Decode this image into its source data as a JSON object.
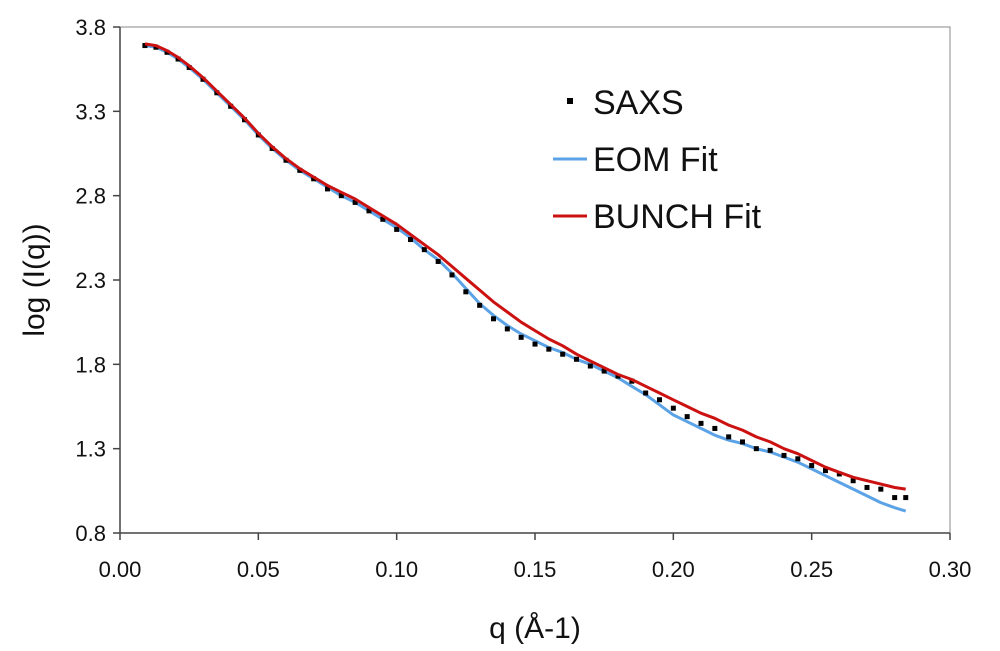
{
  "chart_data": {
    "type": "scatter",
    "title": "",
    "xlabel": "q (Å-1)",
    "ylabel": "log (I(q))",
    "xlim": [
      0.0,
      0.3
    ],
    "ylim": [
      0.8,
      3.8
    ],
    "x_ticks": [
      "0.00",
      "0.05",
      "0.10",
      "0.15",
      "0.20",
      "0.25",
      "0.30"
    ],
    "y_ticks": [
      "3.8",
      "3.3",
      "2.8",
      "2.3",
      "1.8",
      "1.3",
      "0.8"
    ],
    "grid": false,
    "legend_position": "top-right",
    "colors": {
      "SAXS": "#000000",
      "EOM Fit": "#5ba3e6",
      "BUNCH Fit": "#cc1111"
    },
    "series": [
      {
        "name": "SAXS",
        "kind": "points",
        "x": [
          0.009,
          0.013,
          0.017,
          0.021,
          0.025,
          0.03,
          0.035,
          0.04,
          0.045,
          0.05,
          0.055,
          0.06,
          0.065,
          0.07,
          0.075,
          0.08,
          0.085,
          0.09,
          0.095,
          0.1,
          0.105,
          0.11,
          0.115,
          0.12,
          0.125,
          0.13,
          0.135,
          0.14,
          0.145,
          0.15,
          0.155,
          0.16,
          0.165,
          0.17,
          0.175,
          0.18,
          0.185,
          0.19,
          0.195,
          0.2,
          0.205,
          0.21,
          0.215,
          0.22,
          0.225,
          0.23,
          0.235,
          0.24,
          0.245,
          0.25,
          0.255,
          0.26,
          0.265,
          0.27,
          0.275,
          0.28,
          0.284
        ],
        "y": [
          3.69,
          3.68,
          3.65,
          3.61,
          3.56,
          3.49,
          3.41,
          3.33,
          3.25,
          3.16,
          3.08,
          3.01,
          2.95,
          2.9,
          2.84,
          2.8,
          2.76,
          2.71,
          2.66,
          2.6,
          2.54,
          2.48,
          2.41,
          2.33,
          2.23,
          2.15,
          2.07,
          2.01,
          1.96,
          1.92,
          1.89,
          1.86,
          1.83,
          1.79,
          1.76,
          1.73,
          1.7,
          1.63,
          1.59,
          1.54,
          1.49,
          1.45,
          1.42,
          1.37,
          1.34,
          1.3,
          1.29,
          1.26,
          1.24,
          1.2,
          1.17,
          1.15,
          1.11,
          1.07,
          1.06,
          1.01,
          1.01
        ]
      },
      {
        "name": "EOM Fit",
        "kind": "line",
        "x": [
          0.009,
          0.013,
          0.017,
          0.021,
          0.025,
          0.03,
          0.035,
          0.04,
          0.045,
          0.05,
          0.055,
          0.06,
          0.065,
          0.07,
          0.075,
          0.08,
          0.085,
          0.09,
          0.095,
          0.1,
          0.105,
          0.11,
          0.115,
          0.12,
          0.125,
          0.13,
          0.135,
          0.14,
          0.145,
          0.15,
          0.155,
          0.16,
          0.165,
          0.17,
          0.175,
          0.18,
          0.185,
          0.19,
          0.195,
          0.2,
          0.205,
          0.21,
          0.215,
          0.22,
          0.225,
          0.23,
          0.235,
          0.24,
          0.245,
          0.25,
          0.255,
          0.26,
          0.265,
          0.27,
          0.275,
          0.28,
          0.284
        ],
        "y": [
          3.69,
          3.68,
          3.65,
          3.61,
          3.56,
          3.49,
          3.41,
          3.33,
          3.25,
          3.16,
          3.08,
          3.01,
          2.95,
          2.9,
          2.85,
          2.8,
          2.76,
          2.71,
          2.66,
          2.61,
          2.55,
          2.48,
          2.42,
          2.34,
          2.25,
          2.16,
          2.09,
          2.03,
          1.98,
          1.94,
          1.9,
          1.87,
          1.83,
          1.8,
          1.76,
          1.72,
          1.67,
          1.62,
          1.56,
          1.5,
          1.46,
          1.42,
          1.38,
          1.35,
          1.33,
          1.3,
          1.28,
          1.25,
          1.22,
          1.18,
          1.14,
          1.1,
          1.06,
          1.02,
          0.98,
          0.95,
          0.93
        ]
      },
      {
        "name": "BUNCH Fit",
        "kind": "line",
        "x": [
          0.009,
          0.013,
          0.017,
          0.021,
          0.025,
          0.03,
          0.035,
          0.04,
          0.045,
          0.05,
          0.055,
          0.06,
          0.065,
          0.07,
          0.075,
          0.08,
          0.085,
          0.09,
          0.095,
          0.1,
          0.105,
          0.11,
          0.115,
          0.12,
          0.125,
          0.13,
          0.135,
          0.14,
          0.145,
          0.15,
          0.155,
          0.16,
          0.165,
          0.17,
          0.175,
          0.18,
          0.185,
          0.19,
          0.195,
          0.2,
          0.205,
          0.21,
          0.215,
          0.22,
          0.225,
          0.23,
          0.235,
          0.24,
          0.245,
          0.25,
          0.255,
          0.26,
          0.265,
          0.27,
          0.275,
          0.28,
          0.284
        ],
        "y": [
          3.7,
          3.69,
          3.66,
          3.62,
          3.57,
          3.5,
          3.42,
          3.34,
          3.26,
          3.17,
          3.09,
          3.02,
          2.96,
          2.91,
          2.86,
          2.82,
          2.78,
          2.73,
          2.68,
          2.63,
          2.57,
          2.51,
          2.45,
          2.38,
          2.31,
          2.24,
          2.17,
          2.11,
          2.05,
          2.0,
          1.95,
          1.91,
          1.86,
          1.82,
          1.78,
          1.74,
          1.71,
          1.67,
          1.63,
          1.59,
          1.55,
          1.51,
          1.48,
          1.44,
          1.41,
          1.37,
          1.34,
          1.3,
          1.27,
          1.23,
          1.19,
          1.16,
          1.13,
          1.11,
          1.09,
          1.07,
          1.06
        ]
      }
    ]
  }
}
